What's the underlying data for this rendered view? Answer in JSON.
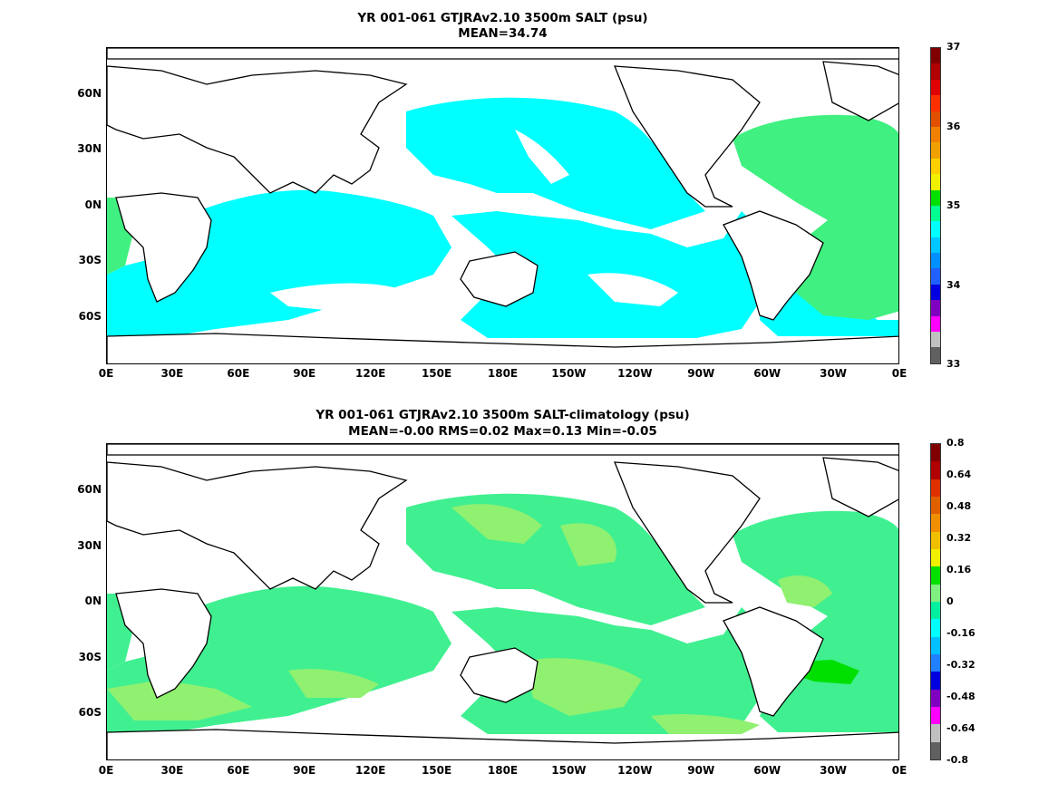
{
  "panels": [
    {
      "id": "top",
      "title": "YR 001-061 GTJRAv2.10 3500m SALT (psu)",
      "subtitle": "MEAN=34.74",
      "colorbar_labels": [
        "37",
        "36",
        "35",
        "34",
        "33"
      ],
      "colorbar_colors": [
        "#800000",
        "#b00000",
        "#e00000",
        "#ff3000",
        "#e05000",
        "#f08000",
        "#f0a000",
        "#ffd000",
        "#f0f000",
        "#00e000",
        "#00ff90",
        "#00ffff",
        "#00c8ff",
        "#0090ff",
        "#2060ff",
        "#0000e0",
        "#8000c0",
        "#ff00ff",
        "#c0c0c0",
        "#606060"
      ],
      "fill_colors": {
        "ocean": "#00ffff",
        "atlantic": "#40f080",
        "gaps": "#ffffff"
      }
    },
    {
      "id": "bottom",
      "title": "YR 001-061 GTJRAv2.10 3500m SALT-climatology (psu)",
      "subtitle": "MEAN=-0.00   RMS=0.02   Max=0.13   Min=-0.05",
      "colorbar_labels": [
        "0.8",
        "0.64",
        "0.48",
        "0.32",
        "0.16",
        "0",
        "-0.16",
        "-0.32",
        "-0.48",
        "-0.64",
        "-0.8"
      ],
      "colorbar_colors": [
        "#800000",
        "#b00000",
        "#e03000",
        "#e06000",
        "#f09000",
        "#f0c000",
        "#f0f000",
        "#00e000",
        "#80f080",
        "#00f0a0",
        "#00ffff",
        "#00c0ff",
        "#2080ff",
        "#0000e0",
        "#8000c0",
        "#ff00ff",
        "#c0c0c0",
        "#606060"
      ],
      "fill_colors": {
        "base": "#40f090",
        "light": "#90f070",
        "strong": "#00e000",
        "gaps": "#ffffff"
      }
    }
  ],
  "x_ticks": [
    "0E",
    "30E",
    "60E",
    "90E",
    "120E",
    "150E",
    "180E",
    "150W",
    "120W",
    "90W",
    "60W",
    "30W",
    "0E"
  ],
  "y_ticks": [
    "60N",
    "30N",
    "0N",
    "30S",
    "60S"
  ]
}
